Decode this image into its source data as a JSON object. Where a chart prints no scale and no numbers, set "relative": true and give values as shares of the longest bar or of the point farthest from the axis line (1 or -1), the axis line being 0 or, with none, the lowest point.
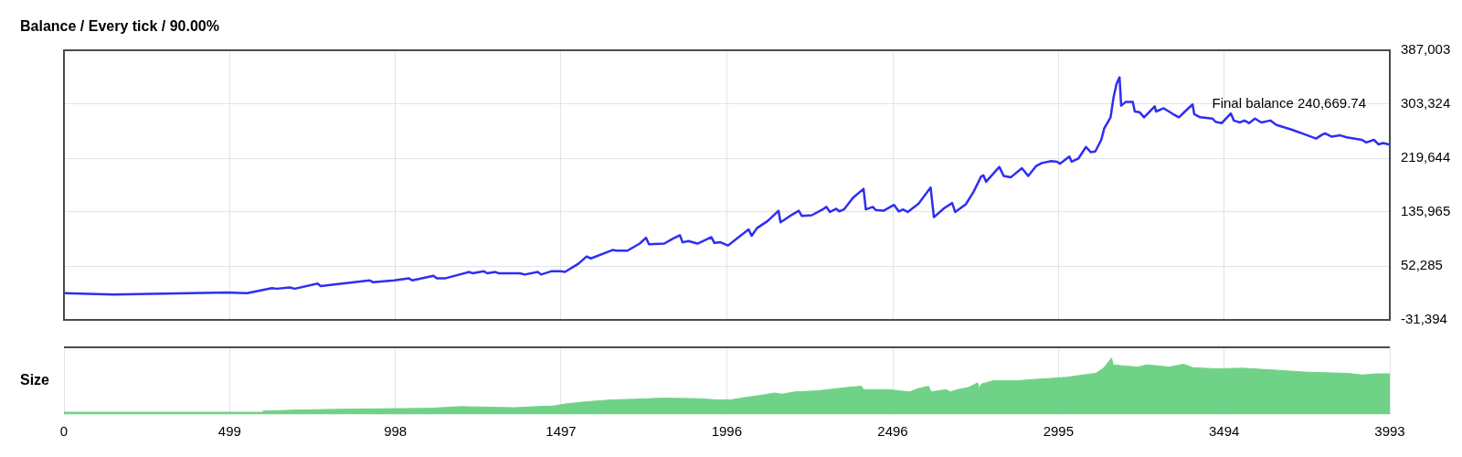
{
  "chart_data": [
    {
      "type": "line",
      "title": "Balance / Every tick / 90.00%",
      "color": "#2e2ef2",
      "x": [
        0,
        149,
        494,
        552,
        626,
        641,
        680,
        695,
        764,
        773,
        921,
        931,
        995,
        1039,
        1049,
        1113,
        1123,
        1147,
        1221,
        1230,
        1265,
        1275,
        1299,
        1309,
        1373,
        1388,
        1427,
        1437,
        1467,
        1495,
        1509,
        1550,
        1574,
        1587,
        1652,
        1665,
        1697,
        1734,
        1753,
        1762,
        1808,
        1835,
        1855,
        1863,
        1881,
        1908,
        1950,
        1959,
        1977,
        2000,
        2037,
        2062,
        2071,
        2087,
        2119,
        2152,
        2158,
        2193,
        2213,
        2222,
        2252,
        2285,
        2296,
        2307,
        2326,
        2335,
        2349,
        2376,
        2408,
        2415,
        2436,
        2445,
        2468,
        2500,
        2514,
        2527,
        2541,
        2574,
        2610,
        2620,
        2651,
        2675,
        2684,
        2716,
        2739,
        2762,
        2769,
        2777,
        2817,
        2830,
        2852,
        2885,
        2904,
        2927,
        2945,
        2973,
        2991,
        3000,
        3028,
        3035,
        3055,
        3078,
        3092,
        3106,
        3124,
        3133,
        3152,
        3161,
        3170,
        3179,
        3184,
        3198,
        3219,
        3225,
        3239,
        3253,
        3285,
        3289,
        3312,
        3340,
        3358,
        3376,
        3399,
        3404,
        3422,
        3459,
        3468,
        3487,
        3514,
        3523,
        3542,
        3555,
        3569,
        3587,
        3606,
        3633,
        3652,
        3697,
        3734,
        3771,
        3789,
        3798,
        3817,
        3844,
        3863,
        3909,
        3922,
        3945,
        3959,
        3973,
        3993
      ],
      "values": [
        10000,
        8000,
        11000,
        10000,
        18000,
        17000,
        19000,
        17000,
        25000,
        21000,
        30000,
        27000,
        30000,
        33000,
        30000,
        37000,
        33000,
        33000,
        43000,
        41000,
        44000,
        41000,
        43000,
        41000,
        41000,
        39000,
        43000,
        39000,
        44000,
        44000,
        43000,
        56000,
        67000,
        64000,
        77000,
        76000,
        76000,
        87000,
        96000,
        86000,
        87000,
        95000,
        100000,
        89000,
        91000,
        87000,
        97000,
        88000,
        89000,
        84000,
        99000,
        109000,
        99000,
        111000,
        122000,
        138000,
        120000,
        132000,
        138000,
        130000,
        131000,
        140000,
        144000,
        136000,
        141000,
        137000,
        140000,
        158000,
        172000,
        140000,
        144000,
        139000,
        138000,
        147000,
        137000,
        140000,
        136000,
        149000,
        174000,
        128000,
        142000,
        150000,
        136000,
        148000,
        167000,
        191000,
        193000,
        183000,
        206000,
        192000,
        190000,
        204000,
        192000,
        207000,
        212000,
        215000,
        214000,
        211000,
        222000,
        214000,
        219000,
        237000,
        229000,
        230000,
        248000,
        266000,
        283000,
        314000,
        335000,
        345000,
        301000,
        307000,
        307000,
        292000,
        291000,
        283000,
        300000,
        292000,
        297000,
        288000,
        283000,
        292000,
        303000,
        288000,
        283000,
        281000,
        276000,
        274000,
        289000,
        278000,
        275000,
        278000,
        274000,
        281000,
        275000,
        278000,
        271000,
        264000,
        257000,
        250000,
        256000,
        258000,
        253000,
        255000,
        252000,
        248000,
        244000,
        248000,
        241000,
        243000,
        240669.74
      ],
      "xlim": [
        0,
        3993
      ],
      "xticks": [
        0,
        499,
        998,
        1497,
        1996,
        2496,
        2995,
        3494,
        3993
      ],
      "ylim": [
        -31394,
        387003
      ],
      "yticks": [
        {
          "value": -31394,
          "label": "-31,394"
        },
        {
          "value": 52285,
          "label": "52,285"
        },
        {
          "value": 135965,
          "label": "135,965"
        },
        {
          "value": 219644,
          "label": "219,644"
        },
        {
          "value": 303324,
          "label": "303,324"
        },
        {
          "value": 387003,
          "label": "387,003"
        }
      ],
      "grid": true,
      "tick_labels": "y",
      "annotations": [
        "Final balance 240,669.74"
      ]
    },
    {
      "type": "area",
      "ylabel": "Size",
      "relative": true,
      "color": "#70d287",
      "x": [
        0,
        599,
        600,
        709,
        798,
        943,
        1101,
        1197,
        1356,
        1424,
        1473,
        1514,
        1583,
        1652,
        1720,
        1803,
        1913,
        1965,
        2009,
        2051,
        2099,
        2140,
        2161,
        2202,
        2271,
        2360,
        2402,
        2408,
        2484,
        2546,
        2574,
        2604,
        2611,
        2656,
        2670,
        2690,
        2725,
        2752,
        2756,
        2763,
        2800,
        2876,
        2918,
        2973,
        3021,
        3055,
        3108,
        3131,
        3155,
        3160,
        3193,
        3234,
        3262,
        3330,
        3372,
        3399,
        3468,
        3551,
        3661,
        3743,
        3798,
        3867,
        3909,
        3950,
        3993
      ],
      "values": [
        0.04,
        0.04,
        0.06,
        0.08,
        0.09,
        0.1,
        0.11,
        0.14,
        0.12,
        0.14,
        0.15,
        0.19,
        0.23,
        0.26,
        0.27,
        0.29,
        0.28,
        0.26,
        0.26,
        0.3,
        0.34,
        0.38,
        0.36,
        0.4,
        0.42,
        0.48,
        0.5,
        0.44,
        0.44,
        0.4,
        0.46,
        0.5,
        0.4,
        0.44,
        0.4,
        0.44,
        0.48,
        0.56,
        0.46,
        0.54,
        0.6,
        0.6,
        0.62,
        0.64,
        0.66,
        0.69,
        0.73,
        0.82,
        1,
        0.88,
        0.86,
        0.84,
        0.88,
        0.84,
        0.89,
        0.83,
        0.81,
        0.82,
        0.78,
        0.75,
        0.74,
        0.73,
        0.7,
        0.72,
        0.72
      ],
      "xlim": [
        0,
        3993
      ],
      "xticks": [
        0,
        499,
        998,
        1497,
        1996,
        2496,
        2995,
        3494,
        3993
      ],
      "grid": "x",
      "tick_labels": "x"
    }
  ]
}
